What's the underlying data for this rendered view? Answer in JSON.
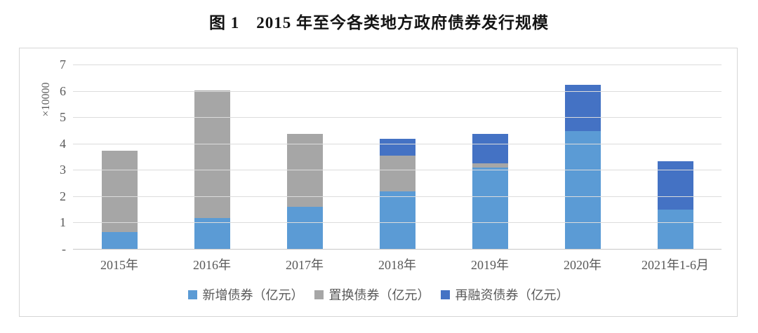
{
  "chart_data": {
    "type": "bar",
    "stacked": true,
    "title": "图 1　2015 年至今各类地方政府债券发行规模",
    "y_axis_label": "×10000",
    "ylim": [
      0,
      7
    ],
    "yticks": [
      {
        "value": 7,
        "label": "7"
      },
      {
        "value": 6,
        "label": "6"
      },
      {
        "value": 5,
        "label": "5"
      },
      {
        "value": 4,
        "label": "4"
      },
      {
        "value": 3,
        "label": "3"
      },
      {
        "value": 2,
        "label": "2"
      },
      {
        "value": 1,
        "label": "1"
      },
      {
        "value": 0,
        "label": "-"
      }
    ],
    "categories": [
      "2015年",
      "2016年",
      "2017年",
      "2018年",
      "2019年",
      "2020年",
      "2021年1-6月"
    ],
    "series": [
      {
        "name": "新增债券（亿元）",
        "color": "#5B9BD5",
        "values": [
          0.64,
          1.17,
          1.6,
          2.17,
          3.08,
          4.46,
          1.49
        ]
      },
      {
        "name": "置换债券（亿元）",
        "color": "#A6A6A6",
        "values": [
          3.1,
          4.85,
          2.77,
          1.38,
          0.18,
          0.0,
          0.0
        ]
      },
      {
        "name": "再融资债券（亿元）",
        "color": "#4472C4",
        "values": [
          0.0,
          0.0,
          0.0,
          0.62,
          1.1,
          1.76,
          1.83
        ]
      }
    ],
    "grid": true,
    "legend_position": "bottom"
  },
  "colors": {
    "gridline": "#dcdcdc",
    "axis_line": "#c8c8c8",
    "axis_text": "#595959",
    "box_border": "#d6d6d6",
    "title_text": "#141414"
  }
}
